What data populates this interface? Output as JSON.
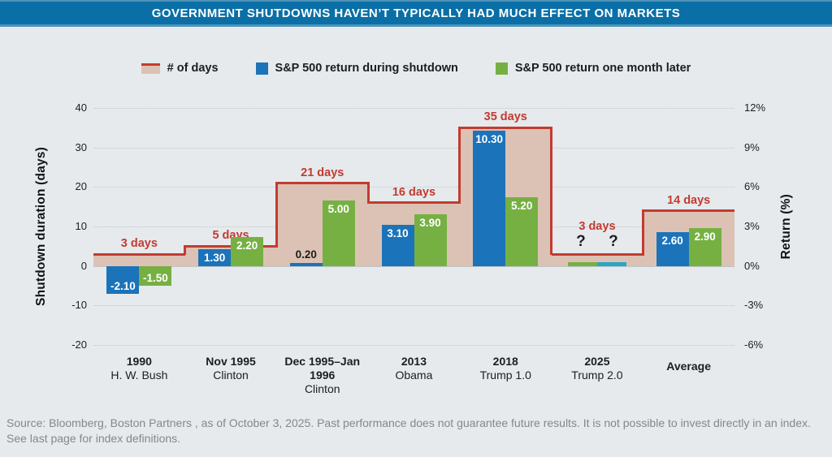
{
  "page": {
    "background": "#e6eaec"
  },
  "header": {
    "title": "GOVERNMENT SHUTDOWNS HAVEN’T TYPICALLY HAD MUCH EFFECT ON MARKETS",
    "bar_color": "#0a6fa6"
  },
  "legend": {
    "items": [
      {
        "label": "# of days",
        "swatch": "tan-area-red-top-swatch"
      },
      {
        "label": "S&P 500 return during shutdown",
        "swatch": "blue-square-swatch"
      },
      {
        "label": "S&P 500 return one month later",
        "swatch": "green-square-swatch"
      }
    ]
  },
  "colors": {
    "tan": "#dcc2b4",
    "red": "#c23b31",
    "blue": "#1b73ba",
    "green": "#76b043",
    "teal": "#28a6c6",
    "grid": "#c0c6c9",
    "text_dark": "#1d1d1f",
    "source_gray": "#84888b"
  },
  "chart_data": {
    "type": "bar",
    "title": "GOVERNMENT SHUTDOWNS HAVEN’T TYPICALLY HAD MUCH EFFECT ON MARKETS",
    "legend_position": "top",
    "grid": "horizontal-dotted",
    "categories": [
      {
        "line1": "1990",
        "line2": "H. W. Bush"
      },
      {
        "line1": "Nov 1995",
        "line2": "Clinton"
      },
      {
        "line1": "Dec 1995–Jan 1996",
        "line2": "Clinton"
      },
      {
        "line1": "2013",
        "line2": "Obama"
      },
      {
        "line1": "2018",
        "line2": "Trump 1.0"
      },
      {
        "line1": "2025",
        "line2": "Trump 2.0"
      },
      {
        "line1": "Average",
        "line2": ""
      }
    ],
    "series": [
      {
        "name": "# of days",
        "axis": "left",
        "style": "step-area",
        "values": [
          3,
          5,
          21,
          16,
          35,
          3,
          14
        ],
        "labels": [
          "3 days",
          "5 days",
          "21 days",
          "16 days",
          "35 days",
          "3 days",
          "14 days"
        ]
      },
      {
        "name": "S&P 500 return during shutdown",
        "axis": "right",
        "style": "bar",
        "values": [
          -2.1,
          1.3,
          0.2,
          3.1,
          10.3,
          null,
          2.6
        ],
        "labels": [
          "-2.10",
          "1.30",
          "0.20",
          "3.10",
          "10.30",
          "?",
          "2.60"
        ]
      },
      {
        "name": "S&P 500 return one month later",
        "axis": "right",
        "style": "bar",
        "values": [
          -1.5,
          2.2,
          5.0,
          3.9,
          5.2,
          null,
          2.9
        ],
        "labels": [
          "-1.50",
          "2.20",
          "5.00",
          "3.90",
          "5.20",
          "?",
          "2.90"
        ]
      }
    ],
    "unknown_group": {
      "index": 5,
      "question_mark": "?",
      "stub_order": [
        "green",
        "teal"
      ]
    },
    "left_axis": {
      "label": "Shutdown duration (days)",
      "ticks": [
        40,
        30,
        20,
        10,
        0,
        -10,
        -20
      ],
      "range": [
        -20,
        40
      ]
    },
    "right_axis": {
      "label": "Return (%)",
      "ticks": [
        "12%",
        "9%",
        "6%",
        "3%",
        "0%",
        "-3%",
        "-6%"
      ],
      "range": [
        -6,
        12
      ]
    }
  },
  "footer": {
    "source": "Source: Bloomberg, Boston Partners , as of October 3, 2025. Past performance does not guarantee future results. It is not possible to invest directly in an index. See last page for index definitions."
  }
}
